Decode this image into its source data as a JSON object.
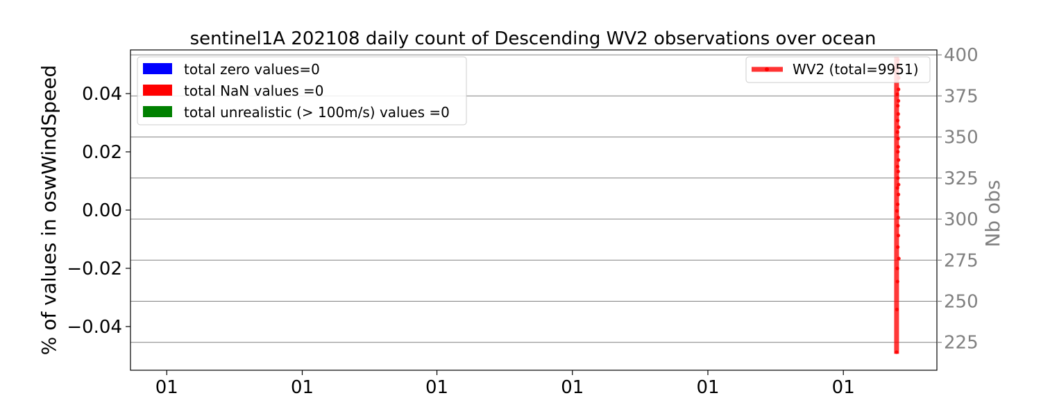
{
  "chart_data": {
    "type": "line",
    "title": "sentinel1A 202108 daily count of Descending WV2 observations over ocean",
    "left_axis": {
      "ylabel": "% of values in oswWindSpeed",
      "ylim": [
        -0.055,
        0.055
      ],
      "ticks": [
        0.04,
        0.02,
        0.0,
        -0.02,
        -0.04
      ],
      "tick_labels": [
        "0.04",
        "0.02",
        "0.00",
        "−0.02",
        "−0.04"
      ]
    },
    "right_axis": {
      "ylabel": "Nb obs",
      "ylim": [
        208,
        403
      ],
      "ticks": [
        225,
        250,
        275,
        300,
        325,
        350,
        375,
        400
      ],
      "tick_labels": [
        "225",
        "250",
        "275",
        "300",
        "325",
        "350",
        "375",
        "400"
      ],
      "grid": true
    },
    "x_axis": {
      "xlim": [
        0,
        1000
      ],
      "ticks": [
        45,
        213,
        380,
        548,
        716,
        884
      ],
      "tick_labels": [
        "01",
        "01",
        "01",
        "01",
        "01",
        "01"
      ]
    },
    "legend_left": {
      "placement": "upper-left",
      "entries": [
        {
          "label": "total zero values=0",
          "color": "#0000ff"
        },
        {
          "label": "total NaN values =0",
          "color": "#ff0000"
        },
        {
          "label": "total unrealistic (> 100m/s) values =0",
          "color": "#008000"
        }
      ]
    },
    "legend_right": {
      "placement": "upper-right",
      "entries": [
        {
          "label": "WV2 (total=9951)",
          "color": "#ff0000"
        }
      ]
    },
    "series": [
      {
        "name": "WV2 (total=9951)",
        "color": "#ff0000",
        "axis": "right",
        "x_range": [
          947,
          953
        ],
        "y_range": [
          218,
          399
        ],
        "points": [
          [
            950.0,
            219
          ],
          [
            950.5,
            245
          ],
          [
            951.2,
            262
          ],
          [
            951.0,
            270
          ],
          [
            952.8,
            276
          ],
          [
            951.5,
            283
          ],
          [
            952.2,
            290
          ],
          [
            951.8,
            296
          ],
          [
            952.1,
            301
          ],
          [
            950.6,
            305
          ],
          [
            951.4,
            309
          ],
          [
            952.3,
            315
          ],
          [
            951.1,
            319
          ],
          [
            952.5,
            321
          ],
          [
            951.7,
            325
          ],
          [
            952.0,
            329
          ],
          [
            951.3,
            332
          ],
          [
            952.4,
            336
          ],
          [
            951.6,
            341
          ],
          [
            952.2,
            344
          ],
          [
            951.9,
            349
          ],
          [
            951.2,
            353
          ],
          [
            952.6,
            356
          ],
          [
            951.4,
            360
          ],
          [
            952.0,
            364
          ],
          [
            951.5,
            369
          ],
          [
            952.3,
            372
          ],
          [
            951.0,
            376
          ],
          [
            952.4,
            379
          ],
          [
            952.8,
            386
          ],
          [
            952.0,
            393
          ],
          [
            951.6,
            397
          ]
        ]
      }
    ]
  }
}
